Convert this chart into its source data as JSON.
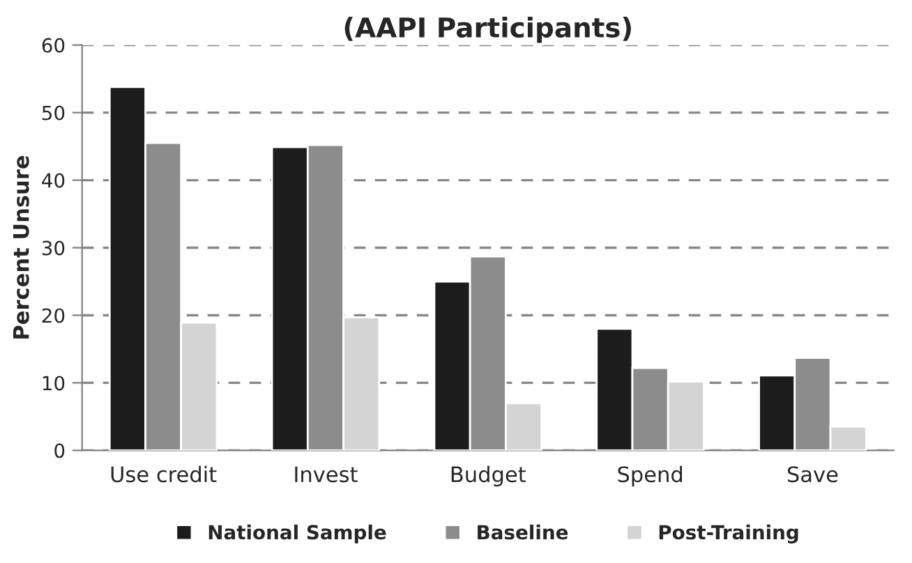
{
  "chart_data": {
    "type": "bar",
    "title": "(AAPI Participants)",
    "ylabel": "Percent Unsure",
    "categories": [
      "Use credit",
      "Invest",
      "Budget",
      "Spend",
      "Save"
    ],
    "series": [
      {
        "name": "National Sample",
        "color": "#1c1c1c",
        "values": [
          53.8,
          44.9,
          25.0,
          18.0,
          11.1
        ]
      },
      {
        "name": "Baseline",
        "color": "#8c8c8c",
        "values": [
          45.5,
          45.2,
          28.7,
          12.2,
          13.7
        ]
      },
      {
        "name": "Post-Training",
        "color": "#d4d4d4",
        "values": [
          18.9,
          19.7,
          7.0,
          10.2,
          3.5
        ]
      }
    ],
    "ylim": [
      0,
      60
    ],
    "yticks": [
      0,
      10,
      20,
      30,
      40,
      50,
      60
    ],
    "grid": "y",
    "legend": "bottom"
  }
}
